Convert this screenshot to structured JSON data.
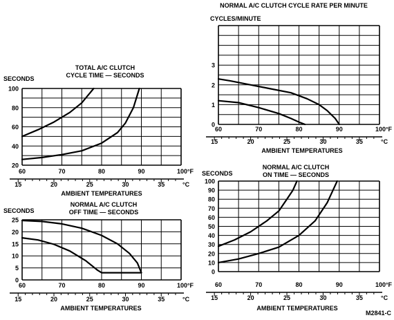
{
  "figure_code": "M2841-C",
  "chart_data": [
    {
      "type": "line",
      "title": "TOTAL A/C CLUTCH\nCYCLE TIME — SECONDS",
      "ylabel": "SECONDS",
      "xlabel": "AMBIENT TEMPERATURES",
      "x_unit": "°F",
      "x2_unit": "°C",
      "xlim": [
        60,
        100
      ],
      "ylim": [
        20,
        100
      ],
      "x_ticks": [
        "60",
        "70",
        "80",
        "90",
        "100°F"
      ],
      "y_ticks": [
        "20",
        "40",
        "60",
        "80",
        "100"
      ],
      "x2_ticks": [
        "15",
        "20",
        "25",
        "30",
        "35"
      ],
      "x2_unit_label": "°C",
      "grid": true,
      "series": [
        {
          "x": [
            60,
            64,
            68,
            72,
            75,
            77,
            78
          ],
          "y": [
            50,
            57,
            65,
            75,
            85,
            95,
            100
          ]
        },
        {
          "x": [
            60,
            65,
            70,
            75,
            80,
            84,
            86,
            88,
            89.5
          ],
          "y": [
            26,
            28,
            31,
            35,
            43,
            54,
            64,
            80,
            100
          ]
        }
      ]
    },
    {
      "type": "line",
      "title": "NORMAL A/C CLUTCH\nOFF TIME — SECONDS",
      "ylabel": "SECONDS",
      "xlabel": "AMBIENT TEMPERATURES",
      "x_unit": "°F",
      "x2_unit": "°C",
      "xlim": [
        60,
        100
      ],
      "ylim": [
        0,
        25
      ],
      "x_ticks": [
        "60",
        "70",
        "80",
        "90",
        "100°F"
      ],
      "y_ticks": [
        "0",
        "5",
        "10",
        "15",
        "20",
        "25"
      ],
      "x2_ticks": [
        "15",
        "20",
        "25",
        "30",
        "35"
      ],
      "x2_unit_label": "°C",
      "grid": true,
      "series": [
        {
          "x": [
            60,
            65,
            70,
            75,
            80,
            84,
            87,
            89,
            90
          ],
          "y": [
            24.7,
            24.3,
            23.3,
            21.5,
            18.5,
            15,
            11,
            7,
            3
          ]
        },
        {
          "x": [
            60,
            64,
            68,
            72,
            76,
            79,
            80,
            90
          ],
          "y": [
            17.5,
            16.6,
            14.8,
            12,
            8,
            4,
            3,
            3
          ]
        }
      ]
    },
    {
      "type": "line",
      "title": "NORMAL A/C CLUTCH CYCLE RATE PER MINUTE",
      "ylabel": "CYCLES/MINUTE",
      "xlabel": "AMBIENT TEMPERATURES",
      "x_unit": "°F",
      "x2_unit": "°C",
      "xlim": [
        60,
        100
      ],
      "ylim": [
        0,
        5
      ],
      "x_ticks": [
        "60",
        "70",
        "80",
        "90",
        "100°F"
      ],
      "y_ticks": [
        "0",
        "1",
        "2",
        "3"
      ],
      "x2_ticks": [
        "15",
        "20",
        "25",
        "30",
        "35"
      ],
      "x2_unit_label": "°C",
      "grid": true,
      "series": [
        {
          "x": [
            60,
            63,
            68,
            73,
            78,
            82,
            85,
            87,
            89,
            90
          ],
          "y": [
            2.3,
            2.2,
            2.0,
            1.8,
            1.6,
            1.3,
            1.0,
            0.7,
            0.3,
            0
          ]
        },
        {
          "x": [
            60,
            65,
            70,
            75,
            78,
            80,
            81.5
          ],
          "y": [
            1.2,
            1.1,
            0.85,
            0.55,
            0.3,
            0.12,
            0
          ]
        }
      ]
    },
    {
      "type": "line",
      "title": "NORMAL A/C CLUTCH\nON TIME — SECONDS",
      "ylabel": "SECONDS",
      "xlabel": "AMBIENT TEMPERATURES",
      "x_unit": "°F",
      "x2_unit": "°C",
      "xlim": [
        60,
        100
      ],
      "ylim": [
        0,
        100
      ],
      "x_ticks": [
        "60",
        "70",
        "80",
        "90",
        "100°F"
      ],
      "y_ticks": [
        "0",
        "10",
        "20",
        "30",
        "40",
        "50",
        "60",
        "70",
        "80",
        "90",
        "100"
      ],
      "x2_ticks": [
        "15",
        "20",
        "25",
        "30",
        "35"
      ],
      "x2_unit_label": "°C",
      "grid": true,
      "series": [
        {
          "x": [
            60,
            64,
            68,
            72,
            75,
            77,
            78.5,
            79.5
          ],
          "y": [
            28,
            35,
            44,
            56,
            67,
            80,
            90,
            100
          ]
        },
        {
          "x": [
            60,
            65,
            70,
            75,
            80,
            84,
            87,
            89.5
          ],
          "y": [
            10,
            14,
            20,
            27,
            40,
            56,
            76,
            100
          ]
        }
      ]
    }
  ]
}
